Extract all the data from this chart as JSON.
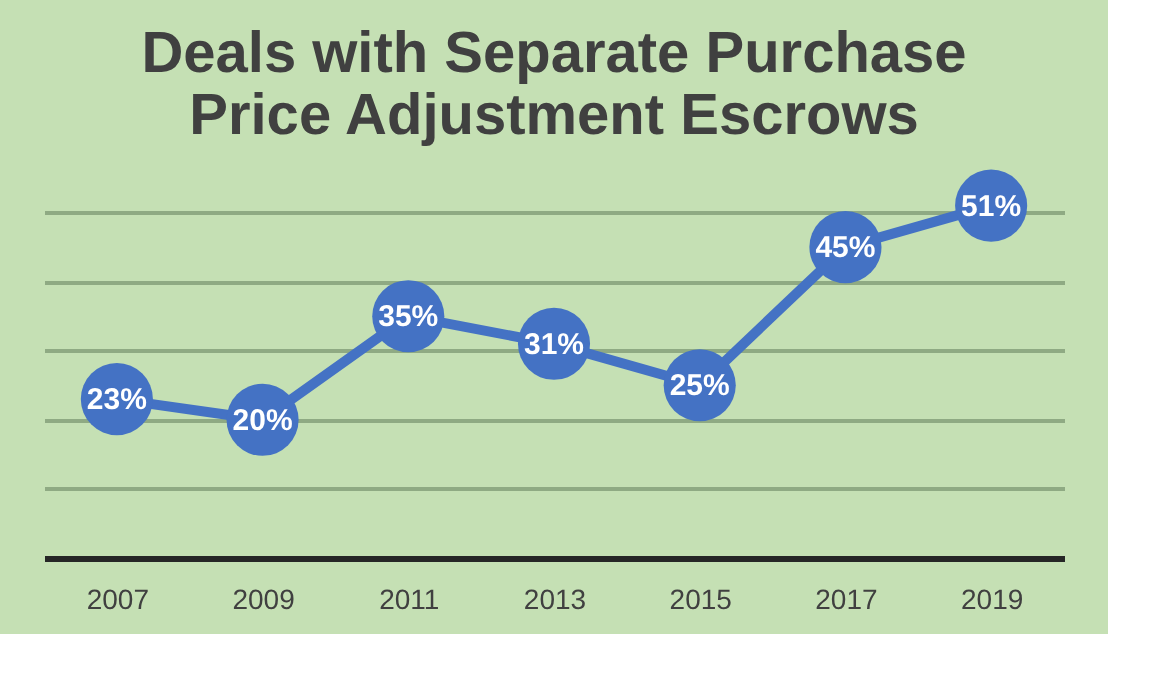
{
  "chart_data": {
    "type": "line",
    "title": [
      "Deals with Separate Purchase",
      "Price Adjustment Escrows"
    ],
    "categories": [
      "2007",
      "2009",
      "2011",
      "2013",
      "2015",
      "2017",
      "2019"
    ],
    "series": [
      {
        "color": "#4472c4",
        "values": [
          23,
          20,
          35,
          31,
          25,
          45,
          51
        ],
        "value_labels": [
          "23%",
          "20%",
          "35%",
          "31%",
          "25%",
          "45%",
          "51%"
        ]
      }
    ],
    "tick_labels": "x",
    "grid": "y",
    "marker": "circle",
    "line_style": "solid"
  }
}
